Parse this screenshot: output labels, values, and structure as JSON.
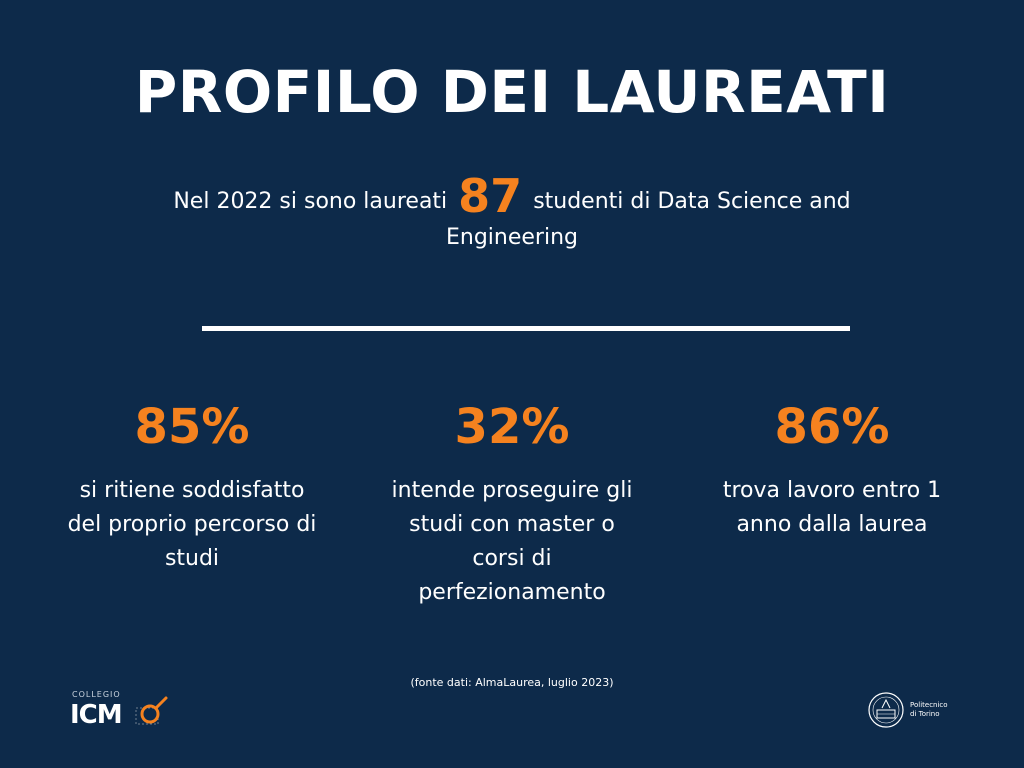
{
  "title": "PROFILO DEI LAUREATI",
  "intro": {
    "before": "Nel 2022 si sono laureati",
    "number": "87",
    "after": "studenti di Data Science and Engineering"
  },
  "stats": [
    {
      "value": "85%",
      "text": "si ritiene soddisfatto del proprio percorso di studi"
    },
    {
      "value": "32%",
      "text": "intende proseguire gli studi con master o corsi di perfezionamento"
    },
    {
      "value": "86%",
      "text": "trova lavoro entro 1 anno dalla laurea"
    }
  ],
  "source": "(fonte dati: AlmaLaurea, luglio 2023)",
  "logos": {
    "left_small": "COLLEGIO",
    "left_big": "ICM",
    "right_line1": "Politecnico",
    "right_line2": "di Torino"
  },
  "colors": {
    "background": "#0d2a4a",
    "accent": "#f5821f",
    "text": "#ffffff"
  }
}
